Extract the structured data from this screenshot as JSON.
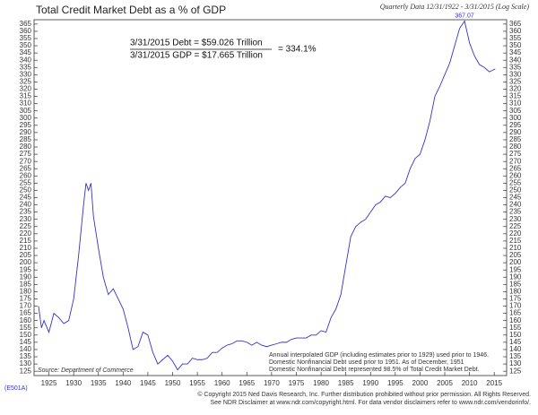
{
  "chart_data": {
    "type": "line",
    "title": "Total Credit Market Debt as a % of GDP",
    "subtitle": "Quarterly Data 12/31/1922 - 3/31/2015 (Log Scale)",
    "formula": {
      "debt": "3/31/2015  Debt  =  $59.026 Trillion",
      "gdp": "3/31/2015  GDP  =  $17.665 Trillion",
      "result": "=  334.1%"
    },
    "notes": [
      "Annual interpolated GDP (including estimates prior to 1929) used prior to 1946.",
      "Domestic Nonfinancial Debt used prior to 1951. As of December, 1951",
      "Domestic Nonfinancial Debt represented 98.5% of Total Credit Market Debt."
    ],
    "source": "Source: Department of Commerce",
    "code": "(E501A)",
    "copyright": [
      "© Copyright 2015 Ned Davis Research, Inc.  Further distribution prohibited without prior permission.  All Rights Reserved.",
      "See NDR Disclaimer at www.ndr.com/copyright.html.  For data vendor disclaimers refer to www.ndr.com/vendorinfo/."
    ],
    "x": [
      1922.9,
      1923.5,
      1924,
      1925,
      1926,
      1927,
      1928,
      1929,
      1930,
      1931,
      1932,
      1932.5,
      1933,
      1933.5,
      1934,
      1935,
      1936,
      1937,
      1938,
      1939,
      1940,
      1941,
      1942,
      1943,
      1944,
      1945,
      1946,
      1947,
      1948,
      1949,
      1950,
      1951,
      1952,
      1953,
      1954,
      1955,
      1956,
      1957,
      1958,
      1959,
      1960,
      1961,
      1962,
      1963,
      1964,
      1965,
      1966,
      1967,
      1968,
      1969,
      1970,
      1971,
      1972,
      1973,
      1974,
      1975,
      1976,
      1977,
      1978,
      1979,
      1980,
      1981,
      1982,
      1983,
      1984,
      1985,
      1986,
      1987,
      1988,
      1989,
      1990,
      1991,
      1992,
      1993,
      1994,
      1995,
      1996,
      1997,
      1998,
      1999,
      2000,
      2001,
      2002,
      2003,
      2004,
      2005,
      2006,
      2007,
      2008,
      2009,
      2010,
      2011,
      2012,
      2013,
      2014,
      2015.2
    ],
    "series": [
      {
        "color": "#3333cc",
        "values": [
          170,
          155,
          160,
          152,
          165,
          162,
          158,
          160,
          175,
          205,
          240,
          255,
          250,
          255,
          232,
          210,
          190,
          178,
          182,
          175,
          168,
          155,
          140,
          142,
          152,
          150,
          138,
          130,
          133,
          136,
          132,
          126,
          130,
          130,
          134,
          133,
          133,
          134,
          138,
          138,
          141,
          143,
          144,
          146,
          146,
          145,
          143,
          145,
          143,
          142,
          143,
          144,
          145,
          145,
          147,
          148,
          148,
          148,
          150,
          150,
          153,
          152,
          162,
          168,
          178,
          198,
          218,
          225,
          228,
          230,
          235,
          240,
          242,
          246,
          245,
          248,
          252,
          255,
          265,
          272,
          275,
          285,
          298,
          315,
          322,
          330,
          338,
          350,
          362,
          367.07,
          352,
          343,
          337,
          335,
          332,
          334
        ]
      }
    ],
    "xlim": [
      1922,
      2017.5
    ],
    "xticks": [
      1925,
      1930,
      1935,
      1940,
      1945,
      1950,
      1955,
      1960,
      1965,
      1970,
      1975,
      1980,
      1985,
      1990,
      1995,
      2000,
      2005,
      2010,
      2015
    ],
    "ylim": [
      122,
      368
    ],
    "yticks": [
      125,
      130,
      135,
      140,
      145,
      150,
      155,
      160,
      165,
      170,
      175,
      180,
      185,
      190,
      195,
      200,
      205,
      210,
      215,
      220,
      225,
      230,
      235,
      240,
      245,
      250,
      255,
      260,
      265,
      270,
      275,
      280,
      285,
      290,
      295,
      300,
      305,
      310,
      315,
      320,
      325,
      330,
      335,
      340,
      345,
      350,
      355,
      360,
      365
    ]
  }
}
